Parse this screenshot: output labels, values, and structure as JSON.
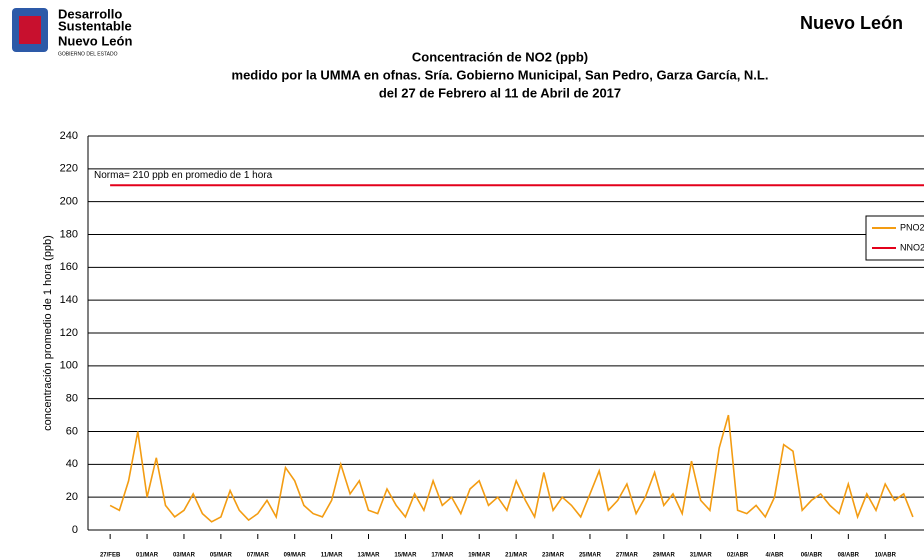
{
  "header": {
    "left_logo": [
      "Desarrollo",
      "Sustentable",
      "Nuevo León",
      "GOBIERNO DEL ESTADO"
    ],
    "right_logo": "Nuevo León"
  },
  "chart_data": {
    "type": "line",
    "title": [
      "Concentración de NO2 (ppb)",
      "medido por la UMMA en ofnas. Sría. Gobierno Municipal, San Pedro, Garza García, N.L.",
      "del 27 de Febrero al 11  de Abril  de 2017"
    ],
    "ylabel": "concentración promedio de 1 hora (ppb)",
    "annotation": "Norma= 210 ppb en promedio de 1 hora",
    "xlim": [
      -1.2,
      44.1
    ],
    "xticks": [
      {
        "value": 0,
        "label": "27/FEB"
      },
      {
        "value": 2,
        "label": "01/MAR"
      },
      {
        "value": 4,
        "label": "03/MAR"
      },
      {
        "value": 6,
        "label": "05/MAR"
      },
      {
        "value": 8,
        "label": "07/MAR"
      },
      {
        "value": 10,
        "label": "09/MAR"
      },
      {
        "value": 12,
        "label": "11/MAR"
      },
      {
        "value": 14,
        "label": "13/MAR"
      },
      {
        "value": 16,
        "label": "15/MAR"
      },
      {
        "value": 18,
        "label": "17/MAR"
      },
      {
        "value": 20,
        "label": "19/MAR"
      },
      {
        "value": 22,
        "label": "21/MAR"
      },
      {
        "value": 24,
        "label": "23/MAR"
      },
      {
        "value": 26,
        "label": "25/MAR"
      },
      {
        "value": 28,
        "label": "27/MAR"
      },
      {
        "value": 30,
        "label": "29/MAR"
      },
      {
        "value": 32,
        "label": "31/MAR"
      },
      {
        "value": 34,
        "label": "02/ABR"
      },
      {
        "value": 36,
        "label": "4/ABR"
      },
      {
        "value": 38,
        "label": "06/ABR"
      },
      {
        "value": 40,
        "label": "08/ABR"
      },
      {
        "value": 42,
        "label": "10/ABR"
      }
    ],
    "ylim": [
      0,
      240
    ],
    "yticks": [
      0,
      20,
      40,
      60,
      80,
      100,
      120,
      140,
      160,
      180,
      200,
      220,
      240
    ],
    "grid": true,
    "legend": "right",
    "series": [
      {
        "name": "PNO2",
        "color": "#f39c12",
        "x": [
          0,
          0.5,
          1,
          1.5,
          2,
          2.5,
          3,
          3.5,
          4,
          4.5,
          5,
          5.5,
          6,
          6.5,
          7,
          7.5,
          8,
          8.5,
          9,
          9.5,
          10,
          10.5,
          11,
          11.5,
          12,
          12.5,
          13,
          13.5,
          14,
          14.5,
          15,
          15.5,
          16,
          16.5,
          17,
          17.5,
          18,
          18.5,
          19,
          19.5,
          20,
          20.5,
          21,
          21.5,
          22,
          22.5,
          23,
          23.5,
          24,
          24.5,
          25,
          25.5,
          26,
          26.5,
          27,
          27.5,
          28,
          28.5,
          29,
          29.5,
          30,
          30.5,
          31,
          31.5,
          32,
          32.5,
          33,
          33.5,
          34,
          34.5,
          35,
          35.5,
          36,
          36.5,
          37,
          37.5,
          38,
          38.5,
          39,
          39.5,
          40,
          40.5,
          41,
          41.5,
          42,
          42.5,
          43,
          43.5
        ],
        "values": [
          15,
          12,
          30,
          60,
          20,
          44,
          15,
          8,
          12,
          22,
          10,
          5,
          8,
          24,
          12,
          6,
          10,
          18,
          8,
          38,
          30,
          15,
          10,
          8,
          18,
          40,
          22,
          30,
          12,
          10,
          25,
          15,
          8,
          22,
          12,
          30,
          15,
          20,
          10,
          25,
          30,
          15,
          20,
          12,
          30,
          18,
          8,
          35,
          12,
          20,
          15,
          8,
          22,
          36,
          12,
          18,
          28,
          10,
          20,
          35,
          15,
          22,
          10,
          42,
          18,
          12,
          50,
          70,
          12,
          10,
          15,
          8,
          20,
          52,
          48,
          12,
          18,
          22,
          15,
          10,
          28,
          8,
          22,
          12,
          28,
          18,
          22,
          8
        ]
      },
      {
        "name": "NNO2",
        "color": "#e3001b",
        "x": [
          0,
          44.1
        ],
        "values": [
          210,
          210
        ]
      }
    ]
  }
}
